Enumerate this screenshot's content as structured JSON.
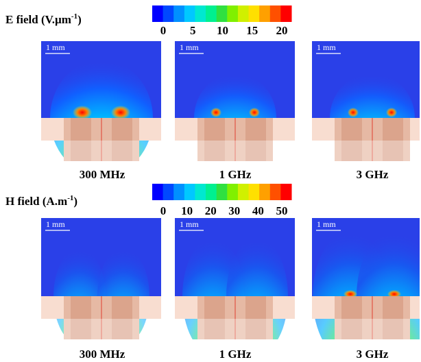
{
  "rows": [
    {
      "title": {
        "text": "E field (V.µm",
        "sup": "-1",
        "end": ")"
      },
      "colorbar": {
        "colors": [
          "#0000ff",
          "#0048ff",
          "#0090ff",
          "#00c8ff",
          "#00e8d0",
          "#00f090",
          "#30e040",
          "#80f000",
          "#d0f000",
          "#ffe000",
          "#ffa000",
          "#ff5000",
          "#ff0000"
        ],
        "ticks": [
          "0",
          "5",
          "10",
          "15",
          "20"
        ]
      },
      "panels": [
        {
          "label": "300 MHz",
          "scale_bar": "1 mm"
        },
        {
          "label": "1 GHz",
          "scale_bar": "1 mm"
        },
        {
          "label": "3 GHz",
          "scale_bar": "1 mm"
        }
      ]
    },
    {
      "title": {
        "text": "H field (A.m",
        "sup": "-1",
        "end": ")"
      },
      "colorbar": {
        "colors": [
          "#0000ff",
          "#0048ff",
          "#0090ff",
          "#00c8ff",
          "#00e8d0",
          "#00f090",
          "#30e040",
          "#80f000",
          "#d0f000",
          "#ffe000",
          "#ffa000",
          "#ff5000",
          "#ff0000"
        ],
        "ticks": [
          "0",
          "10",
          "20",
          "30",
          "40",
          "50"
        ]
      },
      "panels": [
        {
          "label": "300 MHz",
          "scale_bar": "1 mm"
        },
        {
          "label": "1 GHz",
          "scale_bar": "1 mm"
        },
        {
          "label": "3 GHz",
          "scale_bar": "1 mm"
        }
      ]
    }
  ]
}
